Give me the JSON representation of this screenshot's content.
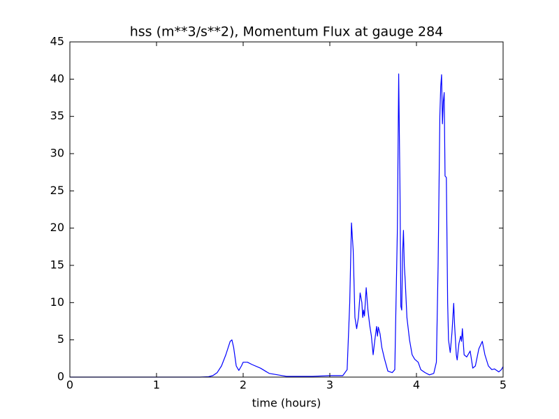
{
  "chart_data": {
    "type": "line",
    "title": "hss (m**3/s**2), Momentum Flux at gauge 284",
    "x_label": "time (hours)",
    "xlim": [
      0,
      5
    ],
    "xticks": [
      0,
      1,
      2,
      3,
      4,
      5
    ],
    "ylim": [
      0,
      45
    ],
    "yticks": [
      0,
      5,
      10,
      15,
      20,
      25,
      30,
      35,
      40,
      45
    ],
    "hline": 0,
    "series": [
      {
        "color": "#0000ff",
        "x": [
          0,
          0.5,
          1,
          1.5,
          1.6,
          1.65,
          1.7,
          1.75,
          1.8,
          1.85,
          1.87,
          1.89,
          1.92,
          1.95,
          1.98,
          2.0,
          2.05,
          2.1,
          2.2,
          2.3,
          2.4,
          2.5,
          2.8,
          3.0,
          3.15,
          3.2,
          3.23,
          3.25,
          3.27,
          3.29,
          3.31,
          3.33,
          3.35,
          3.37,
          3.38,
          3.39,
          3.4,
          3.42,
          3.44,
          3.46,
          3.48,
          3.5,
          3.52,
          3.54,
          3.55,
          3.56,
          3.58,
          3.6,
          3.63,
          3.67,
          3.72,
          3.75,
          3.78,
          3.795,
          3.81,
          3.82,
          3.83,
          3.84,
          3.85,
          3.86,
          3.87,
          3.89,
          3.92,
          3.95,
          3.98,
          4.02,
          4.05,
          4.1,
          4.15,
          4.2,
          4.23,
          4.25,
          4.27,
          4.28,
          4.29,
          4.3,
          4.31,
          4.32,
          4.33,
          4.345,
          4.36,
          4.37,
          4.39,
          4.41,
          4.43,
          4.44,
          4.46,
          4.47,
          4.49,
          4.51,
          4.52,
          4.53,
          4.55,
          4.58,
          4.62,
          4.65,
          4.68,
          4.72,
          4.76,
          4.79,
          4.83,
          4.87,
          4.9,
          4.95,
          4.98,
          5.0
        ],
        "values": [
          0,
          0,
          0,
          0,
          0.05,
          0.2,
          0.6,
          1.5,
          3,
          4.8,
          5.0,
          4,
          1.5,
          0.9,
          1.5,
          2.0,
          2.0,
          1.7,
          1.2,
          0.5,
          0.3,
          0.1,
          0.1,
          0.2,
          0.2,
          1,
          10,
          20.7,
          17,
          8,
          6.5,
          8,
          11.3,
          10,
          8,
          9,
          8.2,
          12,
          9,
          7,
          5.5,
          3,
          5,
          6.8,
          5.5,
          6.7,
          5.8,
          4,
          2.5,
          0.8,
          0.6,
          1,
          20,
          40.7,
          25,
          9.5,
          9,
          16.5,
          19.7,
          15,
          13,
          8,
          5,
          3,
          2.4,
          2,
          1,
          0.6,
          0.3,
          0.5,
          2,
          15,
          35,
          39,
          40.6,
          34,
          37,
          38.2,
          27,
          26.8,
          10,
          5,
          3.3,
          6,
          9.9,
          7,
          3,
          2.3,
          4.5,
          5.5,
          4.8,
          6.5,
          3,
          2.7,
          3.5,
          1.2,
          1.5,
          3.8,
          4.8,
          3,
          1.5,
          1.0,
          1.1,
          0.7,
          1,
          1.4
        ]
      }
    ]
  }
}
